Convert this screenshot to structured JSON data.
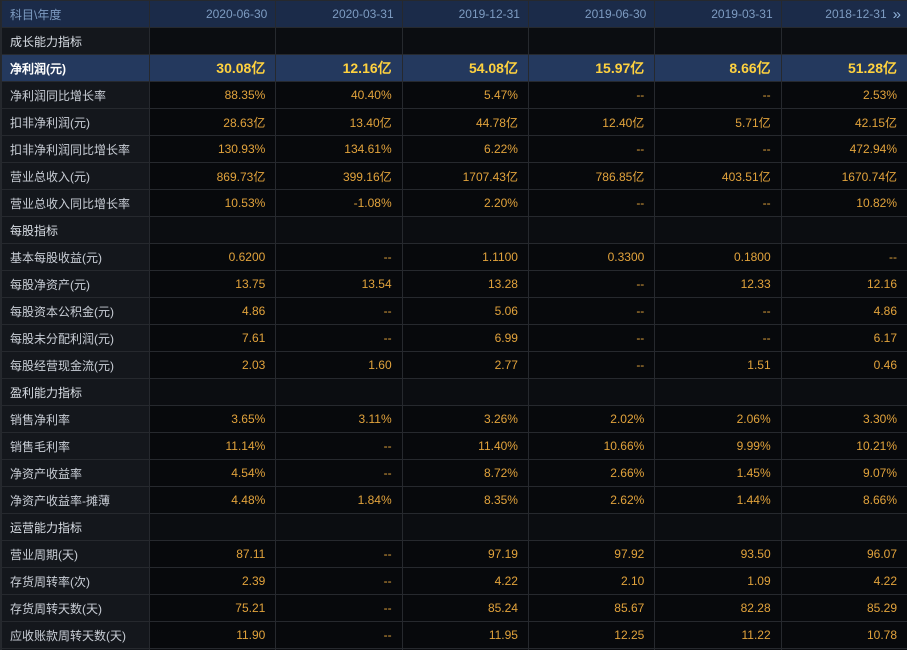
{
  "colors": {
    "header_bg": "#1b2b49",
    "header_text": "#7e9cc2",
    "value_text": "#e2a33c",
    "highlight_row_bg": "#24395e",
    "highlight_value_text": "#ffd23f"
  },
  "table": {
    "corner_label": "科目\\年度",
    "pager_icon": "»",
    "columns": [
      "2020-06-30",
      "2020-03-31",
      "2019-12-31",
      "2019-06-30",
      "2019-03-31",
      "2018-12-31"
    ],
    "rows": [
      {
        "type": "section",
        "label": "成长能力指标"
      },
      {
        "type": "data",
        "label": "净利润(元)",
        "highlight": true,
        "values": [
          "30.08亿",
          "12.16亿",
          "54.08亿",
          "15.97亿",
          "8.66亿",
          "51.28亿"
        ]
      },
      {
        "type": "data",
        "label": "净利润同比增长率",
        "values": [
          "88.35%",
          "40.40%",
          "5.47%",
          "--",
          "--",
          "2.53%"
        ]
      },
      {
        "type": "data",
        "label": "扣非净利润(元)",
        "values": [
          "28.63亿",
          "13.40亿",
          "44.78亿",
          "12.40亿",
          "5.71亿",
          "42.15亿"
        ]
      },
      {
        "type": "data",
        "label": "扣非净利润同比增长率",
        "values": [
          "130.93%",
          "134.61%",
          "6.22%",
          "--",
          "--",
          "472.94%"
        ]
      },
      {
        "type": "data",
        "label": "营业总收入(元)",
        "values": [
          "869.73亿",
          "399.16亿",
          "1707.43亿",
          "786.85亿",
          "403.51亿",
          "1670.74亿"
        ]
      },
      {
        "type": "data",
        "label": "营业总收入同比增长率",
        "values": [
          "10.53%",
          "-1.08%",
          "2.20%",
          "--",
          "--",
          "10.82%"
        ]
      },
      {
        "type": "section",
        "label": "每股指标"
      },
      {
        "type": "data",
        "label": "基本每股收益(元)",
        "values": [
          "0.6200",
          "--",
          "1.1100",
          "0.3300",
          "0.1800",
          "--"
        ]
      },
      {
        "type": "data",
        "label": "每股净资产(元)",
        "values": [
          "13.75",
          "13.54",
          "13.28",
          "--",
          "12.33",
          "12.16"
        ]
      },
      {
        "type": "data",
        "label": "每股资本公积金(元)",
        "values": [
          "4.86",
          "--",
          "5.06",
          "--",
          "--",
          "4.86"
        ]
      },
      {
        "type": "data",
        "label": "每股未分配利润(元)",
        "values": [
          "7.61",
          "--",
          "6.99",
          "--",
          "--",
          "6.17"
        ]
      },
      {
        "type": "data",
        "label": "每股经营现金流(元)",
        "values": [
          "2.03",
          "1.60",
          "2.77",
          "--",
          "1.51",
          "0.46"
        ]
      },
      {
        "type": "section",
        "label": "盈利能力指标"
      },
      {
        "type": "data",
        "label": "销售净利率",
        "values": [
          "3.65%",
          "3.11%",
          "3.26%",
          "2.02%",
          "2.06%",
          "3.30%"
        ]
      },
      {
        "type": "data",
        "label": "销售毛利率",
        "values": [
          "11.14%",
          "--",
          "11.40%",
          "10.66%",
          "9.99%",
          "10.21%"
        ]
      },
      {
        "type": "data",
        "label": "净资产收益率",
        "values": [
          "4.54%",
          "--",
          "8.72%",
          "2.66%",
          "1.45%",
          "9.07%"
        ]
      },
      {
        "type": "data",
        "label": "净资产收益率-摊薄",
        "values": [
          "4.48%",
          "1.84%",
          "8.35%",
          "2.62%",
          "1.44%",
          "8.66%"
        ]
      },
      {
        "type": "section",
        "label": "运营能力指标"
      },
      {
        "type": "data",
        "label": "营业周期(天)",
        "values": [
          "87.11",
          "--",
          "97.19",
          "97.92",
          "93.50",
          "96.07"
        ]
      },
      {
        "type": "data",
        "label": "存货周转率(次)",
        "values": [
          "2.39",
          "--",
          "4.22",
          "2.10",
          "1.09",
          "4.22"
        ]
      },
      {
        "type": "data",
        "label": "存货周转天数(天)",
        "values": [
          "75.21",
          "--",
          "85.24",
          "85.67",
          "82.28",
          "85.29"
        ]
      },
      {
        "type": "data",
        "label": "应收账款周转天数(天)",
        "values": [
          "11.90",
          "--",
          "11.95",
          "12.25",
          "11.22",
          "10.78"
        ]
      },
      {
        "type": "partial",
        "label": "",
        "values": [
          "",
          "",
          "",
          "",
          "",
          ""
        ]
      }
    ]
  }
}
